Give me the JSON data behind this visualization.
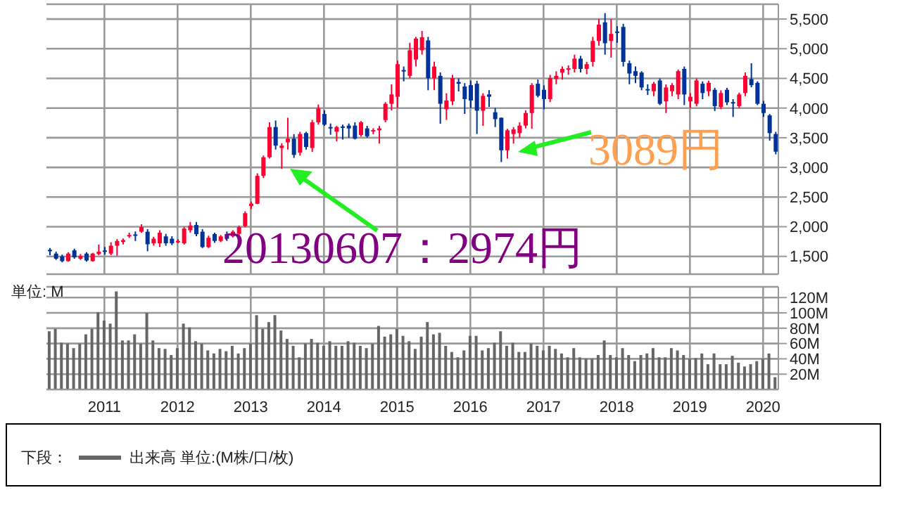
{
  "chart_data": [
    {
      "type": "candlestick",
      "categories": [
        null,
        null,
        null,
        null,
        null,
        null,
        null,
        null,
        null,
        null,
        null,
        null,
        null,
        null,
        null,
        null,
        null,
        null,
        null,
        null,
        null,
        null,
        null,
        null,
        null,
        null,
        null,
        null,
        null,
        null,
        null,
        null,
        null,
        null,
        null,
        null,
        null,
        null,
        null,
        null,
        null,
        null,
        null,
        null,
        null,
        null,
        null,
        null,
        null,
        null,
        null,
        null,
        null,
        null,
        null,
        null,
        null,
        null,
        null,
        null,
        null,
        null,
        null,
        null,
        null,
        null,
        null,
        null,
        null,
        null,
        null,
        null,
        null,
        null,
        null,
        null,
        null,
        null,
        null,
        null,
        null,
        null,
        null,
        null,
        null,
        null,
        null,
        null,
        null,
        null,
        null,
        null,
        null,
        null,
        null,
        null,
        null,
        null,
        null,
        null,
        null,
        null,
        null,
        null,
        null,
        null,
        null,
        null,
        null,
        null,
        null,
        null,
        null,
        null,
        null,
        null,
        null,
        null,
        null,
        null
      ],
      "ohlc": [
        [
          1610,
          1640,
          1520,
          1600
        ],
        [
          1547,
          1580,
          1440,
          1461
        ],
        [
          1500,
          1530,
          1400,
          1420
        ],
        [
          1420,
          1570,
          1410,
          1547
        ],
        [
          1602,
          1630,
          1460,
          1484
        ],
        [
          1461,
          1540,
          1440,
          1508
        ],
        [
          1547,
          1570,
          1410,
          1430
        ],
        [
          1420,
          1560,
          1410,
          1547
        ],
        [
          1540,
          1700,
          1520,
          1580
        ],
        [
          1600,
          1660,
          1530,
          1590
        ],
        [
          1547,
          1740,
          1520,
          1680
        ],
        [
          1680,
          1790,
          1510,
          1760
        ],
        [
          1743,
          1800,
          1700,
          1775
        ],
        [
          1850,
          1900,
          1810,
          1860
        ],
        [
          1870,
          1920,
          1760,
          1860
        ],
        [
          1916,
          2040,
          1900,
          1994
        ],
        [
          1916,
          1960,
          1586,
          1704
        ],
        [
          1720,
          1830,
          1680,
          1798
        ],
        [
          1720,
          1940,
          1660,
          1900
        ],
        [
          1837,
          1880,
          1680,
          1720
        ],
        [
          1798,
          1840,
          1690,
          1720
        ],
        [
          1750,
          1790,
          1720,
          1760
        ],
        [
          1720,
          2000,
          1700,
          1970
        ],
        [
          1940,
          2080,
          1900,
          2020
        ],
        [
          2030,
          2080,
          1840,
          1875
        ],
        [
          1916,
          1960,
          1640,
          1657
        ],
        [
          1657,
          1850,
          1640,
          1814
        ],
        [
          1876,
          1900,
          1730,
          1760
        ],
        [
          1760,
          1860,
          1740,
          1837
        ],
        [
          1876,
          1920,
          1760,
          1798
        ],
        [
          1837,
          1940,
          1820,
          1916
        ],
        [
          1880,
          2020,
          1850,
          1994
        ],
        [
          2010,
          2260,
          1990,
          2229
        ],
        [
          2350,
          2420,
          2300,
          2390
        ],
        [
          2386,
          2900,
          2380,
          2857
        ],
        [
          2857,
          3200,
          2820,
          3171
        ],
        [
          3171,
          3760,
          3150,
          3680
        ],
        [
          3680,
          3790,
          3300,
          3367
        ],
        [
          3327,
          3406,
          2974,
          3367
        ],
        [
          3422,
          3837,
          3300,
          3484
        ],
        [
          3484,
          3560,
          3160,
          3210
        ],
        [
          3249,
          3600,
          3200,
          3563
        ],
        [
          3578,
          3600,
          3300,
          3343
        ],
        [
          3327,
          3800,
          3260,
          3759
        ],
        [
          3759,
          4060,
          3720,
          3994
        ],
        [
          3900,
          3960,
          3700,
          3720
        ],
        [
          3680,
          3740,
          3550,
          3657
        ],
        [
          3602,
          3700,
          3440,
          3680
        ],
        [
          3690,
          3720,
          3470,
          3670
        ],
        [
          3704,
          3740,
          3500,
          3657
        ],
        [
          3704,
          3760,
          3470,
          3484
        ],
        [
          3547,
          3780,
          3520,
          3759
        ],
        [
          3657,
          3700,
          3500,
          3524
        ],
        [
          3610,
          3660,
          3560,
          3630
        ],
        [
          3626,
          3700,
          3400,
          3657
        ],
        [
          3798,
          4100,
          3760,
          4072
        ],
        [
          4072,
          4400,
          3960,
          4229
        ],
        [
          4190,
          4800,
          4000,
          4739
        ],
        [
          4640,
          4700,
          4450,
          4622
        ],
        [
          4543,
          5100,
          4500,
          4974
        ],
        [
          4818,
          5200,
          4700,
          5170
        ],
        [
          4974,
          5300,
          4900,
          5194
        ],
        [
          5140,
          5200,
          4300,
          4504
        ],
        [
          4504,
          4780,
          4300,
          4700
        ],
        [
          4543,
          4600,
          3735,
          4072
        ],
        [
          3980,
          4250,
          3800,
          4127
        ],
        [
          4112,
          4560,
          4050,
          4504
        ],
        [
          4440,
          4500,
          4280,
          4410
        ],
        [
          4363,
          4420,
          3900,
          4151
        ],
        [
          4386,
          4460,
          4000,
          4127
        ],
        [
          4410,
          4460,
          3563,
          3955
        ],
        [
          3955,
          4250,
          3700,
          4206
        ],
        [
          4230,
          4300,
          4020,
          4190
        ],
        [
          3930,
          4000,
          3680,
          3814
        ],
        [
          3837,
          3840,
          3089,
          3288
        ],
        [
          3288,
          3650,
          3150,
          3625
        ],
        [
          3563,
          3680,
          3400,
          3640
        ],
        [
          3578,
          3760,
          3500,
          3704
        ],
        [
          3704,
          3960,
          3660,
          3916
        ],
        [
          3916,
          4420,
          3650,
          4386
        ],
        [
          4410,
          4480,
          4180,
          4206
        ],
        [
          4308,
          4380,
          3980,
          4151
        ],
        [
          4151,
          4560,
          4100,
          4504
        ],
        [
          4490,
          4620,
          4400,
          4543
        ],
        [
          4598,
          4700,
          4480,
          4660
        ],
        [
          4660,
          4720,
          4560,
          4670
        ],
        [
          4660,
          4900,
          4600,
          4833
        ],
        [
          4833,
          4880,
          4600,
          4660
        ],
        [
          4660,
          4780,
          4570,
          4740
        ],
        [
          4778,
          5200,
          4700,
          5131
        ],
        [
          5131,
          5500,
          5050,
          5406
        ],
        [
          5445,
          5600,
          4900,
          5092
        ],
        [
          5131,
          5500,
          4850,
          5250
        ],
        [
          5290,
          5380,
          5100,
          5270
        ],
        [
          5367,
          5420,
          4700,
          4778
        ],
        [
          4755,
          4800,
          4400,
          4582
        ],
        [
          4622,
          4700,
          4420,
          4543
        ],
        [
          4598,
          4620,
          4300,
          4347
        ],
        [
          4320,
          4400,
          4220,
          4300
        ],
        [
          4284,
          4440,
          4200,
          4410
        ],
        [
          4465,
          4500,
          4050,
          4072
        ],
        [
          4112,
          4400,
          3916,
          4347
        ],
        [
          4284,
          4420,
          4200,
          4386
        ],
        [
          4229,
          4650,
          4150,
          4622
        ],
        [
          4660,
          4700,
          4050,
          4229
        ],
        [
          4112,
          4250,
          4000,
          4190
        ],
        [
          4072,
          4500,
          4030,
          4465
        ],
        [
          4410,
          4450,
          4150,
          4253
        ],
        [
          4284,
          4460,
          4200,
          4425
        ],
        [
          4308,
          4340,
          3950,
          4033
        ],
        [
          4018,
          4300,
          3980,
          4253
        ],
        [
          4308,
          4340,
          4050,
          4096
        ],
        [
          4100,
          4150,
          3850,
          4090
        ],
        [
          4033,
          4260,
          4000,
          4229
        ],
        [
          4253,
          4600,
          4200,
          4543
        ],
        [
          4488,
          4755,
          4350,
          4386
        ],
        [
          4425,
          4450,
          4050,
          4072
        ],
        [
          4072,
          4120,
          3850,
          3916
        ],
        [
          3876,
          3900,
          3450,
          3578
        ],
        [
          3563,
          3600,
          3220,
          3265
        ]
      ],
      "colors": [
        "#003399",
        "#003399",
        "#003399",
        "#ff0033",
        "#003399",
        "#ff0033",
        "#003399",
        "#ff0033",
        "#ff0033",
        "#003399",
        "#ff0033",
        "#ff0033",
        "#ff0033",
        "#ff0033",
        "#003399",
        "#ff0033",
        "#003399",
        "#ff0033",
        "#ff0033",
        "#003399",
        "#003399",
        "#ff0033",
        "#ff0033",
        "#ff0033",
        "#003399",
        "#003399",
        "#ff0033",
        "#003399",
        "#ff0033",
        "#003399",
        "#ff0033",
        "#ff0033",
        "#ff0033",
        "#ff0033",
        "#ff0033",
        "#ff0033",
        "#ff0033",
        "#003399",
        "#ff0033",
        "#ff0033",
        "#003399",
        "#ff0033",
        "#003399",
        "#ff0033",
        "#ff0033",
        "#003399",
        "#003399",
        "#ff0033",
        "#003399",
        "#003399",
        "#003399",
        "#ff0033",
        "#003399",
        "#ff0033",
        "#ff0033",
        "#ff0033",
        "#ff0033",
        "#ff0033",
        "#003399",
        "#ff0033",
        "#ff0033",
        "#ff0033",
        "#003399",
        "#ff0033",
        "#003399",
        "#ff0033",
        "#ff0033",
        "#003399",
        "#003399",
        "#003399",
        "#003399",
        "#ff0033",
        "#003399",
        "#003399",
        "#003399",
        "#ff0033",
        "#ff0033",
        "#ff0033",
        "#ff0033",
        "#ff0033",
        "#003399",
        "#003399",
        "#ff0033",
        "#ff0033",
        "#ff0033",
        "#ff0033",
        "#ff0033",
        "#003399",
        "#ff0033",
        "#ff0033",
        "#ff0033",
        "#003399",
        "#ff0033",
        "#003399",
        "#003399",
        "#003399",
        "#003399",
        "#003399",
        "#003399",
        "#ff0033",
        "#003399",
        "#ff0033",
        "#ff0033",
        "#ff0033",
        "#003399",
        "#ff0033",
        "#ff0033",
        "#003399",
        "#ff0033",
        "#003399",
        "#ff0033",
        "#003399",
        "#003399",
        "#ff0033",
        "#ff0033",
        "#003399",
        "#003399",
        "#003399",
        "#003399",
        "#003399"
      ],
      "ylim": [
        1200,
        5750
      ],
      "yticks": [
        {
          "value": 1500,
          "label": "1,500"
        },
        {
          "value": 2000,
          "label": "2,000"
        },
        {
          "value": 2500,
          "label": "2,500"
        },
        {
          "value": 3000,
          "label": "3,000"
        },
        {
          "value": 3500,
          "label": "3,500"
        },
        {
          "value": 4000,
          "label": "4,000"
        },
        {
          "value": 4500,
          "label": "4,500"
        },
        {
          "value": 5000,
          "label": "5,000"
        },
        {
          "value": 5500,
          "label": "5,500"
        }
      ],
      "grid": true,
      "tick_labels": "y",
      "annotations": [
        "20130607：2974円",
        "3089円"
      ]
    },
    {
      "type": "bar",
      "categories": [
        null,
        null,
        null,
        null,
        null,
        null,
        null,
        null,
        null,
        "2011",
        null,
        null,
        null,
        null,
        null,
        null,
        null,
        null,
        null,
        null,
        null,
        "2012",
        null,
        null,
        null,
        null,
        null,
        null,
        null,
        null,
        null,
        null,
        null,
        "2013",
        null,
        null,
        null,
        null,
        null,
        null,
        null,
        null,
        null,
        null,
        null,
        "2014",
        null,
        null,
        null,
        null,
        null,
        null,
        null,
        null,
        null,
        null,
        null,
        "2015",
        null,
        null,
        null,
        null,
        null,
        null,
        null,
        null,
        null,
        null,
        null,
        "2016",
        null,
        null,
        null,
        null,
        null,
        null,
        null,
        null,
        null,
        null,
        null,
        "2017",
        null,
        null,
        null,
        null,
        null,
        null,
        null,
        null,
        null,
        null,
        null,
        "2018",
        null,
        null,
        null,
        null,
        null,
        null,
        null,
        null,
        null,
        null,
        null,
        "2019",
        null,
        null,
        null,
        null,
        null,
        null,
        null,
        null,
        null,
        null,
        null,
        "2020",
        null,
        null
      ],
      "series": [
        {
          "name": "出来高 単位:(M株/口/枚)",
          "color": "#666666",
          "values": [
            76,
            79,
            61,
            60,
            54,
            60,
            72,
            79,
            101,
            90,
            86,
            128,
            64,
            64,
            72,
            60,
            100,
            64,
            54,
            53,
            45,
            54,
            86,
            81,
            63,
            60,
            51,
            47,
            53,
            50,
            57,
            47,
            54,
            60,
            97,
            79,
            88,
            97,
            77,
            66,
            57,
            42,
            60,
            66,
            61,
            57,
            63,
            57,
            57,
            63,
            61,
            57,
            54,
            60,
            83,
            69,
            72,
            79,
            70,
            63,
            53,
            69,
            88,
            72,
            74,
            57,
            49,
            42,
            51,
            70,
            70,
            51,
            54,
            61,
            76,
            57,
            61,
            49,
            49,
            60,
            57,
            51,
            57,
            53,
            47,
            42,
            54,
            42,
            40,
            40,
            45,
            64,
            45,
            42,
            54,
            45,
            37,
            45,
            47,
            54,
            42,
            42,
            54,
            51,
            45,
            40,
            41,
            47,
            33,
            47,
            33,
            33,
            44,
            35,
            30,
            33,
            37,
            40,
            47,
            16
          ]
        }
      ],
      "ylim": [
        0,
        134
      ],
      "yticks": [
        {
          "value": 20,
          "label": "20M"
        },
        {
          "value": 40,
          "label": "40M"
        },
        {
          "value": 60,
          "label": "60M"
        },
        {
          "value": 80,
          "label": "80M"
        },
        {
          "value": 100,
          "label": "100M"
        },
        {
          "value": 120,
          "label": "120M"
        }
      ],
      "ylabel": "単位: M",
      "grid": true,
      "legend": "bottom",
      "legend_title": "下段："
    }
  ]
}
